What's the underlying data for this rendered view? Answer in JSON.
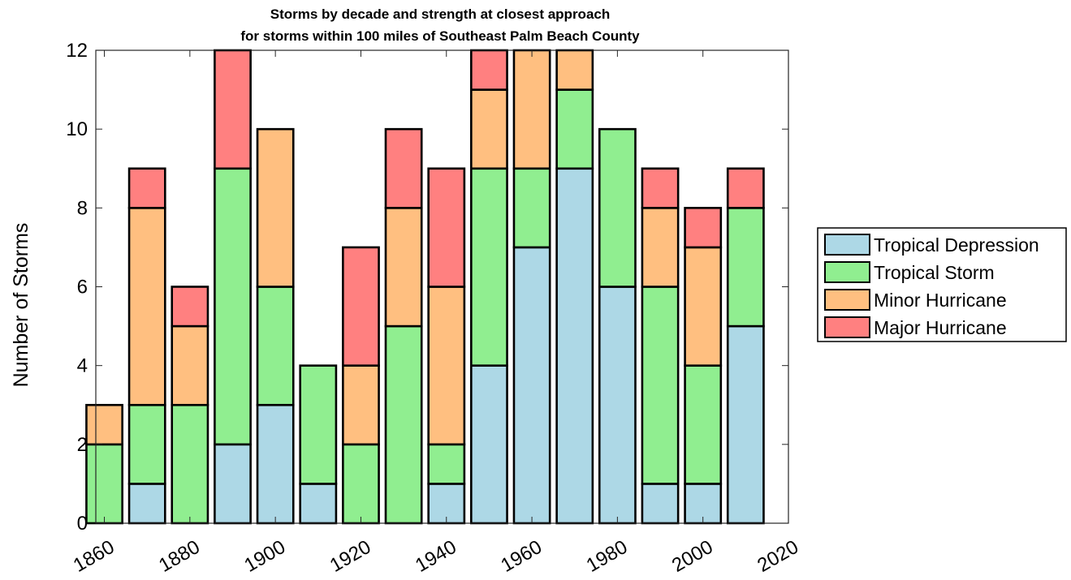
{
  "chart_data": {
    "type": "bar",
    "stacked": true,
    "title": "Storms by decade and strength at closest approach",
    "subtitle": "for storms within 100 miles of Southeast Palm Beach County",
    "xlabel": "",
    "ylabel": "Number of Storms",
    "categories": [
      1860,
      1870,
      1880,
      1890,
      1900,
      1910,
      1920,
      1930,
      1940,
      1950,
      1960,
      1970,
      1980,
      1990,
      2000,
      2010
    ],
    "xlim": [
      1858,
      2020
    ],
    "xticks": [
      "1860",
      "1880",
      "1900",
      "1920",
      "1940",
      "1960",
      "1980",
      "2000",
      "2020"
    ],
    "ylim": [
      0,
      12
    ],
    "yticks": [
      "0",
      "2",
      "4",
      "6",
      "8",
      "10",
      "12"
    ],
    "grid": false,
    "legend_position": "right",
    "series": [
      {
        "name": "Tropical Depression",
        "color": "#add8e6",
        "values": [
          0,
          1,
          0,
          2,
          3,
          1,
          0,
          0,
          1,
          4,
          7,
          9,
          6,
          1,
          1,
          5
        ]
      },
      {
        "name": "Tropical Storm",
        "color": "#90ee90",
        "values": [
          2,
          2,
          3,
          7,
          3,
          3,
          2,
          5,
          1,
          5,
          2,
          2,
          4,
          5,
          3,
          3
        ]
      },
      {
        "name": "Minor Hurricane",
        "color": "#ffbf80",
        "values": [
          1,
          5,
          2,
          0,
          4,
          0,
          2,
          3,
          4,
          2,
          3,
          1,
          0,
          2,
          3,
          0
        ]
      },
      {
        "name": "Major Hurricane",
        "color": "#ff8080",
        "values": [
          0,
          1,
          1,
          3,
          0,
          0,
          3,
          2,
          3,
          1,
          0,
          0,
          0,
          1,
          1,
          1
        ]
      }
    ]
  }
}
